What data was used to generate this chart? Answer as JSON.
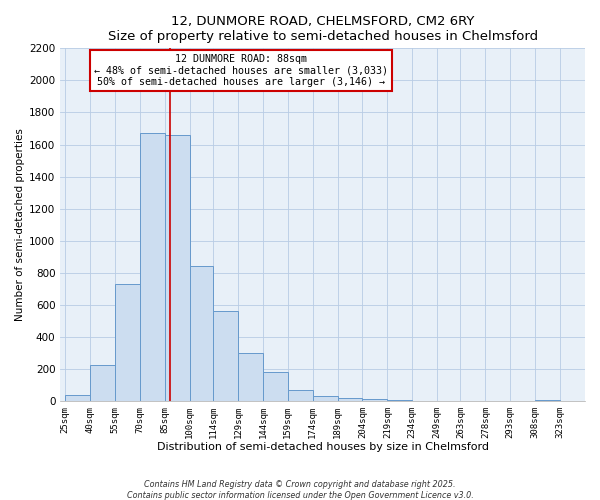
{
  "title": "12, DUNMORE ROAD, CHELMSFORD, CM2 6RY",
  "subtitle": "Size of property relative to semi-detached houses in Chelmsford",
  "xlabel": "Distribution of semi-detached houses by size in Chelmsford",
  "ylabel": "Number of semi-detached properties",
  "bar_left_edges": [
    25,
    40,
    55,
    70,
    85,
    100,
    114,
    129,
    144,
    159,
    174,
    189,
    204,
    219,
    234,
    249,
    263,
    278,
    293,
    308
  ],
  "bar_heights": [
    40,
    225,
    730,
    1670,
    1660,
    840,
    560,
    300,
    180,
    70,
    35,
    20,
    15,
    5,
    0,
    0,
    0,
    0,
    0,
    5
  ],
  "bar_widths": [
    15,
    15,
    15,
    15,
    15,
    14,
    15,
    15,
    15,
    15,
    15,
    15,
    15,
    15,
    15,
    14,
    15,
    15,
    15,
    15
  ],
  "bar_color": "#ccddf0",
  "bar_edge_color": "#6699cc",
  "tick_labels": [
    "25sqm",
    "40sqm",
    "55sqm",
    "70sqm",
    "85sqm",
    "100sqm",
    "114sqm",
    "129sqm",
    "144sqm",
    "159sqm",
    "174sqm",
    "189sqm",
    "204sqm",
    "219sqm",
    "234sqm",
    "249sqm",
    "263sqm",
    "278sqm",
    "293sqm",
    "308sqm",
    "323sqm"
  ],
  "tick_positions": [
    25,
    40,
    55,
    70,
    85,
    100,
    114,
    129,
    144,
    159,
    174,
    189,
    204,
    219,
    234,
    249,
    263,
    278,
    293,
    308,
    323
  ],
  "ylim": [
    0,
    2200
  ],
  "yticks": [
    0,
    200,
    400,
    600,
    800,
    1000,
    1200,
    1400,
    1600,
    1800,
    2000,
    2200
  ],
  "xlim_left": 22,
  "xlim_right": 338,
  "vline_x": 88,
  "vline_color": "#cc0000",
  "annotation_title": "12 DUNMORE ROAD: 88sqm",
  "annotation_line1": "← 48% of semi-detached houses are smaller (3,033)",
  "annotation_line2": "50% of semi-detached houses are larger (3,146) →",
  "annotation_box_color": "#ffffff",
  "annotation_box_edge": "#cc0000",
  "plot_bg_color": "#e8f0f8",
  "fig_bg_color": "#ffffff",
  "grid_color": "#b8cce4",
  "footer1": "Contains HM Land Registry data © Crown copyright and database right 2025.",
  "footer2": "Contains public sector information licensed under the Open Government Licence v3.0."
}
